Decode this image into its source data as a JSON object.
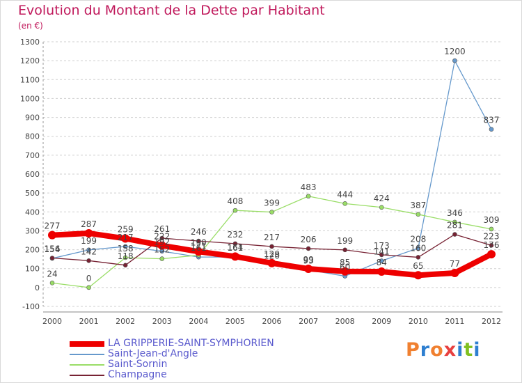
{
  "page": {
    "title": "Evolution du Montant de la Dette par Habitant",
    "unit": "(en €)",
    "logo_letters": [
      "P",
      "r",
      "o",
      "x",
      "i",
      "t",
      "i"
    ],
    "logo_colors": [
      "#f08030",
      "#2e7fd0",
      "#f08030",
      "#e84040",
      "#2e7fd0",
      "#80c020",
      "#2e7fd0"
    ]
  },
  "chart_data": {
    "type": "line",
    "title": "Evolution du Montant de la Dette par Habitant",
    "ylabel": "(en €)",
    "xlabel": "",
    "x": [
      "2000",
      "2001",
      "2002",
      "2003",
      "2004",
      "2005",
      "2006",
      "2007",
      "2008",
      "2009",
      "2010",
      "2011",
      "2012"
    ],
    "ylim": [
      -100,
      1300
    ],
    "yticks": [
      -100,
      0,
      100,
      200,
      300,
      400,
      500,
      600,
      700,
      800,
      900,
      1000,
      1100,
      1200,
      1300
    ],
    "grid": "horizontal-dashed",
    "legend_position": "bottom-left",
    "series": [
      {
        "name": "LA GRIPPERIE-SAINT-SYMPHORIEN",
        "color": "#ee0000",
        "values": [
          277,
          287,
          259,
          222,
          190,
          164,
          129,
          99,
          85,
          84,
          65,
          77,
          176
        ],
        "labels": [
          "277",
          "287",
          "259",
          "222",
          "190",
          "164",
          "129",
          "99",
          "85",
          "84",
          "65",
          "77",
          "176"
        ]
      },
      {
        "name": "Saint-Jean-d'Angle",
        "color": "#6699cc",
        "values": [
          154,
          199,
          217,
          192,
          161,
          161,
          120,
          93,
          60,
          141,
          208,
          1200,
          837
        ],
        "labels": [
          "154",
          "199",
          "217",
          "192",
          "161",
          "161",
          "120",
          "93",
          "60",
          "141",
          "208",
          "1200",
          "837"
        ]
      },
      {
        "name": "Saint-Sornin",
        "color": "#99dd66",
        "values": [
          24,
          0,
          158,
          152,
          171,
          408,
          399,
          483,
          444,
          424,
          387,
          346,
          309
        ],
        "labels": [
          "24",
          "0",
          "158",
          "152",
          "171",
          "408",
          "399",
          "483",
          "444",
          "424",
          "387",
          "346",
          "309"
        ]
      },
      {
        "name": "Champagne",
        "color": "#772233",
        "values": [
          156,
          142,
          118,
          261,
          246,
          232,
          217,
          206,
          199,
          173,
          160,
          281,
          223
        ],
        "labels": [
          "156",
          "142",
          "118",
          "261",
          "246",
          "232",
          "217",
          "206",
          "199",
          "173",
          "160",
          "281",
          "223"
        ]
      }
    ]
  }
}
